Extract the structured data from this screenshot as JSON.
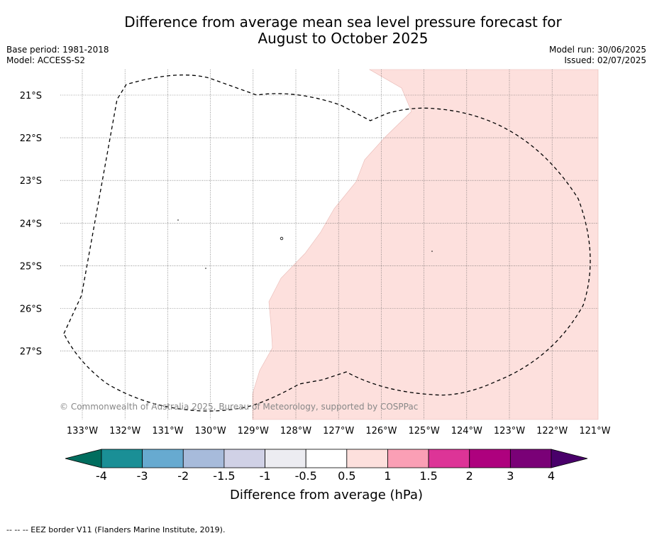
{
  "title": {
    "line1": "Difference from average mean sea level pressure forecast for",
    "line2": "August to October 2025"
  },
  "meta": {
    "base_period": "Base period: 1981-2018",
    "model": "Model: ACCESS-S2",
    "model_run": "Model run: 30/06/2025",
    "issued": "Issued: 02/07/2025"
  },
  "map": {
    "copyright": "© Commonwealth of Australia 2025, Bureau of Meteorology, supported by COSPPac",
    "lon_labels": [
      "133°W",
      "132°W",
      "131°W",
      "130°W",
      "129°W",
      "128°W",
      "127°W",
      "126°W",
      "125°W",
      "124°W",
      "123°W",
      "122°W",
      "121°W"
    ],
    "lat_labels": [
      "21°S",
      "22°S",
      "23°S",
      "24°S",
      "25°S",
      "26°S",
      "27°S"
    ],
    "shade_color": "#fde0dd",
    "shaded_category": "0.5 to 1"
  },
  "colorbar": {
    "label": "Difference from average (hPa)",
    "ticks": [
      "-4",
      "-3",
      "-2",
      "-1.5",
      "-1",
      "-0.5",
      "0.5",
      "1",
      "1.5",
      "2",
      "3",
      "4"
    ],
    "colors": [
      "#006d5e",
      "#1a8f96",
      "#67aad0",
      "#a7bbdb",
      "#d0d1e6",
      "#ececf1",
      "#ffffff",
      "#fde0dd",
      "#fa9fb5",
      "#dd3497",
      "#ae017e",
      "#7a0177",
      "#49006a"
    ]
  },
  "footer": {
    "legend": "--  --  -- EEZ border V11 (Flanders Marine Institute, 2019)."
  }
}
